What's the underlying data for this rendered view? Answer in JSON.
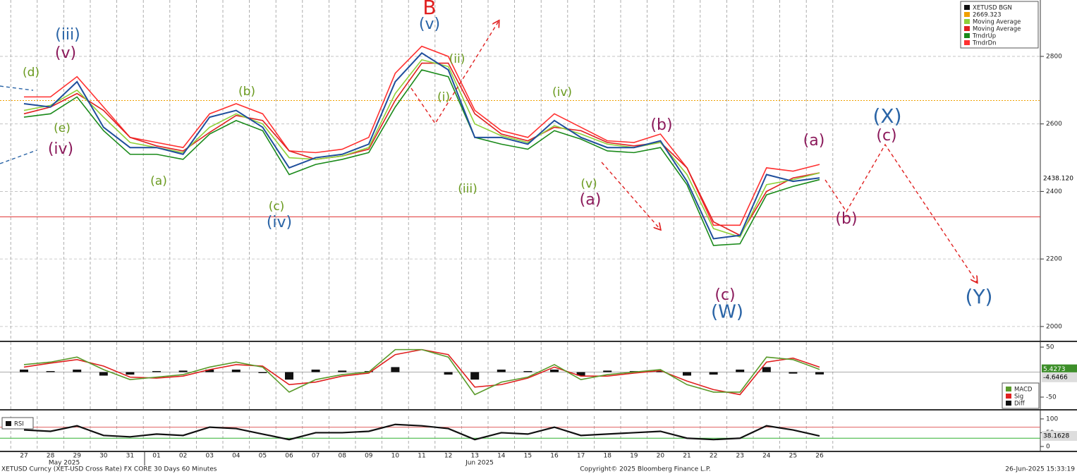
{
  "chart_data": [
    {
      "type": "line",
      "categories": [
        "27",
        "28",
        "29",
        "30",
        "31",
        "01",
        "02",
        "03",
        "04",
        "05",
        "06",
        "07",
        "08",
        "09",
        "10",
        "11",
        "12",
        "13",
        "14",
        "15",
        "16",
        "17",
        "18",
        "19",
        "20",
        "21",
        "22",
        "23",
        "24",
        "25",
        "26"
      ],
      "month_labels": [
        "May 2025",
        "Jun 2025"
      ],
      "series": [
        {
          "name": "XETUSD BGN",
          "color": "#1f4e9c",
          "values": [
            2660,
            2650,
            2725,
            2590,
            2530,
            2530,
            2510,
            2620,
            2640,
            2590,
            2470,
            2500,
            2510,
            2540,
            2725,
            2810,
            2760,
            2560,
            2560,
            2540,
            2610,
            2560,
            2530,
            2530,
            2550,
            2430,
            2260,
            2270,
            2450,
            2430,
            2440
          ]
        },
        {
          "name": "Moving Average",
          "color": "#8fd13a",
          "values": [
            2640,
            2655,
            2700,
            2620,
            2545,
            2530,
            2515,
            2590,
            2630,
            2600,
            2500,
            2495,
            2505,
            2530,
            2690,
            2790,
            2770,
            2600,
            2565,
            2545,
            2595,
            2570,
            2540,
            2530,
            2545,
            2450,
            2290,
            2265,
            2420,
            2435,
            2455
          ]
        },
        {
          "name": "Moving Average",
          "color": "#e02020",
          "values": [
            2630,
            2650,
            2690,
            2640,
            2560,
            2535,
            2520,
            2575,
            2625,
            2610,
            2520,
            2495,
            2505,
            2525,
            2670,
            2780,
            2780,
            2630,
            2570,
            2550,
            2590,
            2580,
            2545,
            2535,
            2545,
            2470,
            2310,
            2270,
            2400,
            2440,
            2455
          ]
        },
        {
          "name": "TrndrUp",
          "color": "#1a8a1a",
          "values": [
            2620,
            2630,
            2680,
            2580,
            2510,
            2510,
            2495,
            2570,
            2610,
            2580,
            2450,
            2480,
            2495,
            2515,
            2650,
            2760,
            2740,
            2560,
            2540,
            2525,
            2580,
            2555,
            2520,
            2515,
            2530,
            2420,
            2240,
            2245,
            2390,
            2415,
            2435
          ]
        },
        {
          "name": "TrndrDn",
          "color": "#ff3030",
          "values": [
            2680,
            2680,
            2740,
            2650,
            2560,
            2545,
            2530,
            2630,
            2660,
            2630,
            2520,
            2515,
            2525,
            2560,
            2750,
            2830,
            2800,
            2640,
            2580,
            2560,
            2630,
            2590,
            2550,
            2545,
            2570,
            2470,
            2300,
            2300,
            2470,
            2460,
            2480
          ]
        }
      ],
      "reference_lines": [
        {
          "name": "2669.323",
          "value": 2669.323,
          "color": "#f0a000"
        },
        {
          "value": 2325,
          "color": "#e03030"
        }
      ],
      "last_price": 2438.12,
      "last_price_label": "2438.120",
      "ylim": [
        1958,
        2967
      ],
      "yticks": [
        2000,
        2200,
        2400,
        2600,
        2800
      ],
      "grid": true,
      "annotations": [
        {
          "text": "B",
          "color": "#e02020"
        },
        {
          "text": "(v)",
          "color": "#2a64a6"
        },
        {
          "text": "(iii)",
          "color": "#2a64a6"
        },
        {
          "text": "(v)",
          "color": "#8b1a5b"
        },
        {
          "text": "(d)",
          "color": "#6a9a1f"
        },
        {
          "text": "(e)",
          "color": "#6a9a1f"
        },
        {
          "text": "(iv)",
          "color": "#8b1a5b"
        },
        {
          "text": "(b)",
          "color": "#6a9a1f"
        },
        {
          "text": "(a)",
          "color": "#6a9a1f"
        },
        {
          "text": "(c)",
          "color": "#6a9a1f"
        },
        {
          "text": "(iv)",
          "color": "#2a64a6"
        },
        {
          "text": "(ii)",
          "color": "#6a9a1f"
        },
        {
          "text": "(i)",
          "color": "#6a9a1f"
        },
        {
          "text": "(iii)",
          "color": "#6a9a1f"
        },
        {
          "text": "(iv)",
          "color": "#6a9a1f"
        },
        {
          "text": "(v)",
          "color": "#6a9a1f"
        },
        {
          "text": "(a)",
          "color": "#8b1a5b"
        },
        {
          "text": "(b)",
          "color": "#8b1a5b"
        },
        {
          "text": "(c)",
          "color": "#8b1a5b"
        },
        {
          "text": "(W)",
          "color": "#2a64a6"
        },
        {
          "text": "(a)",
          "color": "#8b1a5b"
        },
        {
          "text": "(X)",
          "color": "#2a64a6"
        },
        {
          "text": "(c)",
          "color": "#8b1a5b"
        },
        {
          "text": "(b)",
          "color": "#8b1a5b"
        },
        {
          "text": "(Y)",
          "color": "#2a64a6"
        }
      ]
    },
    {
      "type": "line",
      "series": [
        {
          "name": "MACD",
          "color": "#5a9a2a",
          "values": [
            15,
            20,
            30,
            5,
            -15,
            -10,
            -5,
            10,
            20,
            10,
            -40,
            -15,
            -5,
            0,
            45,
            45,
            30,
            -45,
            -20,
            -10,
            15,
            -15,
            -5,
            0,
            5,
            -25,
            -40,
            -40,
            30,
            25,
            5.4273
          ]
        },
        {
          "name": "Sig",
          "color": "#e02020",
          "values": [
            10,
            18,
            25,
            12,
            -10,
            -12,
            -8,
            5,
            15,
            12,
            -25,
            -20,
            -8,
            -2,
            35,
            45,
            35,
            -30,
            -25,
            -12,
            10,
            -8,
            -8,
            -2,
            3,
            -18,
            -35,
            -45,
            20,
            28,
            10
          ]
        },
        {
          "name": "Diff",
          "color": "#111111",
          "type": "bar",
          "values": [
            5,
            2,
            5,
            -7,
            -5,
            2,
            3,
            5,
            5,
            -2,
            -15,
            5,
            3,
            2,
            10,
            0,
            -5,
            -15,
            5,
            2,
            5,
            -7,
            3,
            2,
            2,
            -7,
            -5,
            5,
            10,
            -3,
            -4.6466
          ]
        }
      ],
      "ylim": [
        -74,
        60
      ],
      "yticks": [
        -50,
        50
      ]
    },
    {
      "type": "line",
      "series": [
        {
          "name": "RSI",
          "color": "#111111",
          "values": [
            60,
            55,
            75,
            40,
            35,
            45,
            40,
            70,
            65,
            45,
            25,
            50,
            50,
            55,
            80,
            75,
            65,
            25,
            50,
            45,
            70,
            40,
            45,
            50,
            55,
            30,
            25,
            30,
            75,
            60,
            38.1628
          ]
        }
      ],
      "reference_lines": [
        {
          "value": 70,
          "color": "#e06060"
        },
        {
          "value": 30,
          "color": "#30b030"
        }
      ],
      "ylim": [
        -18,
        110
      ],
      "yticks": [
        0,
        50,
        100
      ]
    }
  ],
  "footer": {
    "left": "XETUSD Curncy (XET-USD Cross Rate) FX CORE 30 Days 60 Minutes",
    "center": "Copyright© 2025 Bloomberg Finance L.P.",
    "right": "26-Jun-2025 15:33:19"
  }
}
